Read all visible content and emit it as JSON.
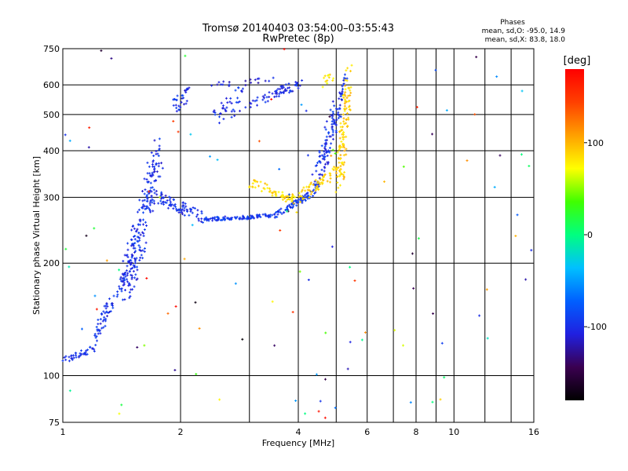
{
  "chart_data": {
    "type": "scatter",
    "title": "Tromsø 20140403 03:54:00–03:55:43",
    "subtitle": "RwPretec (8p)",
    "xlabel": "Frequency [MHz]",
    "ylabel": "Stationary phase Virtual Height [km]",
    "x_scale": "log2",
    "y_scale": "log",
    "xlim": [
      1,
      16
    ],
    "ylim": [
      75,
      750
    ],
    "grid": true,
    "x_ticks": [
      {
        "v": 1,
        "label": "1"
      },
      {
        "v": 2,
        "label": "2"
      },
      {
        "v": 4,
        "label": "4"
      },
      {
        "v": 6,
        "label": "6"
      },
      {
        "v": 8,
        "label": "8"
      },
      {
        "v": 10,
        "label": "10"
      },
      {
        "v": 16,
        "label": "16"
      }
    ],
    "x_grid": [
      1,
      2,
      3,
      4,
      5,
      6,
      7,
      8,
      9,
      10,
      12,
      14,
      16
    ],
    "y_ticks": [
      {
        "v": 75,
        "label": "75"
      },
      {
        "v": 100,
        "label": "100"
      },
      {
        "v": 200,
        "label": "200"
      },
      {
        "v": 300,
        "label": "300"
      },
      {
        "v": 400,
        "label": "400"
      },
      {
        "v": 500,
        "label": "500"
      },
      {
        "v": 600,
        "label": "600"
      },
      {
        "v": 750,
        "label": "750"
      }
    ],
    "legend": {
      "title": "Phases",
      "line1": "mean, sd,O: -95.0, 14.9",
      "line2": "mean, sd,X:  83.8, 18.0",
      "position": "top-right"
    },
    "colorbar": {
      "label": "[deg]",
      "range": [
        -180,
        180
      ],
      "ticks": [
        {
          "v": 100,
          "label": "100"
        },
        {
          "v": 0,
          "label": "0"
        },
        {
          "v": -100,
          "label": "-100"
        }
      ],
      "colors": [
        "#000000",
        "#3a0050",
        "#2020e0",
        "#0060ff",
        "#00c0ff",
        "#00ff80",
        "#40ff00",
        "#ffff00",
        "#ffa000",
        "#ff4000",
        "#ff0000"
      ]
    },
    "traces": [
      {
        "name": "",
        "x1": 1.0,
        "x2": 1.2,
        "y1": 110,
        "y2": 118,
        "phase": -100,
        "n": 40,
        "spread": 0.02
      },
      {
        "name": "",
        "x1": 1.2,
        "x2": 1.45,
        "y1": 125,
        "y2": 190,
        "phase": -100,
        "n": 70,
        "spread": 0.05
      },
      {
        "name": "",
        "x1": 1.45,
        "x2": 1.75,
        "y1": 170,
        "y2": 390,
        "phase": -100,
        "n": 230,
        "spread": 0.12
      },
      {
        "name": "",
        "x1": 1.75,
        "x2": 2.3,
        "y1": 300,
        "y2": 265,
        "phase": -100,
        "n": 80,
        "spread": 0.04
      },
      {
        "name": "",
        "x1": 2.3,
        "x2": 3.5,
        "y1": 262,
        "y2": 268,
        "phase": -95,
        "n": 110,
        "spread": 0.012
      },
      {
        "name": "",
        "x1": 3.5,
        "x2": 4.4,
        "y1": 270,
        "y2": 310,
        "phase": -95,
        "n": 70,
        "spread": 0.02
      },
      {
        "name": "",
        "x1": 4.4,
        "x2": 5.1,
        "y1": 320,
        "y2": 540,
        "phase": -100,
        "n": 120,
        "spread": 0.08
      },
      {
        "name": "",
        "x1": 5.1,
        "x2": 5.3,
        "y1": 550,
        "y2": 640,
        "phase": -100,
        "n": 20,
        "spread": 0.03
      },
      {
        "name": "",
        "x1": 1.92,
        "x2": 2.1,
        "y1": 520,
        "y2": 570,
        "phase": -100,
        "n": 30,
        "spread": 0.05
      },
      {
        "name": "",
        "x1": 2.4,
        "x2": 2.9,
        "y1": 480,
        "y2": 560,
        "phase": -100,
        "n": 40,
        "spread": 0.07
      },
      {
        "name": "",
        "x1": 3.0,
        "x2": 4.1,
        "y1": 530,
        "y2": 610,
        "phase": -100,
        "n": 60,
        "spread": 0.03
      },
      {
        "name": "",
        "x1": 2.4,
        "x2": 3.6,
        "y1": 600,
        "y2": 620,
        "phase": -110,
        "n": 20,
        "spread": 0.02
      },
      {
        "name": "",
        "x1": 3.0,
        "x2": 3.9,
        "y1": 330,
        "y2": 295,
        "phase": 85,
        "n": 60,
        "spread": 0.03
      },
      {
        "name": "",
        "x1": 4.0,
        "x2": 5.2,
        "y1": 300,
        "y2": 360,
        "phase": 88,
        "n": 70,
        "spread": 0.04
      },
      {
        "name": "",
        "x1": 5.1,
        "x2": 5.4,
        "y1": 330,
        "y2": 650,
        "phase": 90,
        "n": 110,
        "spread": 0.08
      },
      {
        "name": "",
        "x1": 4.6,
        "x2": 4.9,
        "y1": 600,
        "y2": 640,
        "phase": 80,
        "n": 12,
        "spread": 0.03
      }
    ],
    "noise": {
      "n": 110,
      "phase_min": -180,
      "phase_max": 180
    }
  }
}
